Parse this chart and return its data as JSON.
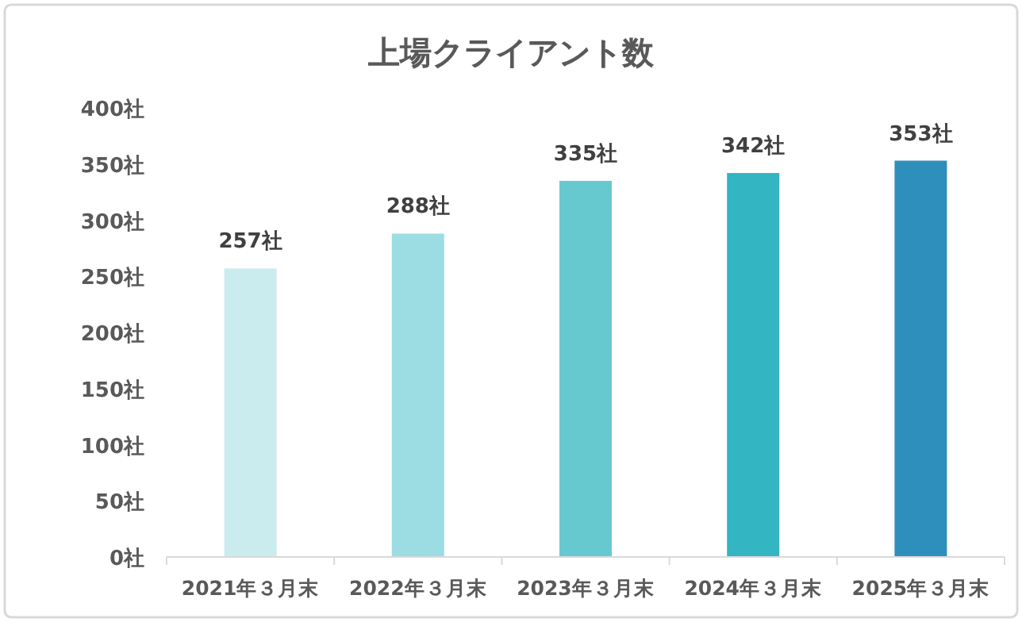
{
  "chart_data": {
    "type": "bar",
    "title": "上場クライアント数",
    "categories": [
      "2021年３月末",
      "2022年３月末",
      "2023年３月末",
      "2024年３月末",
      "2025年３月末"
    ],
    "values": [
      257,
      288,
      335,
      342,
      353
    ],
    "colors": [
      "#cbecee",
      "#9cdde3",
      "#67c9d0",
      "#33b5c2",
      "#2e8fbd"
    ],
    "value_labels": [
      "257社",
      "288社",
      "335社",
      "342社",
      "353社"
    ],
    "ylim": [
      0,
      400
    ],
    "yticks": [
      {
        "value": 0,
        "label": "0社"
      },
      {
        "value": 50,
        "label": "50社"
      },
      {
        "value": 100,
        "label": "100社"
      },
      {
        "value": 150,
        "label": "150社"
      },
      {
        "value": 200,
        "label": "200社"
      },
      {
        "value": 250,
        "label": "250社"
      },
      {
        "value": 300,
        "label": "300社"
      },
      {
        "value": 350,
        "label": "350社"
      },
      {
        "value": 400,
        "label": "400社"
      }
    ]
  }
}
